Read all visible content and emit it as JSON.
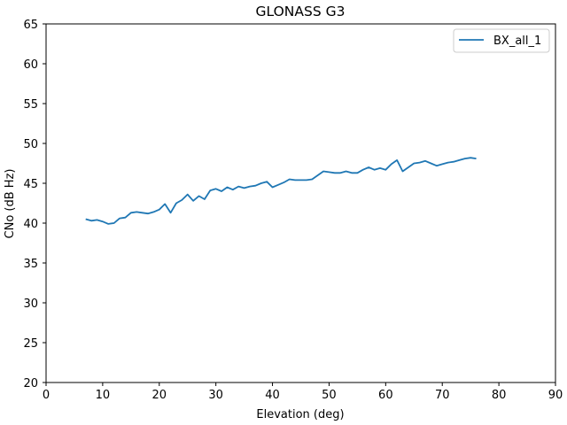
{
  "chart_data": {
    "type": "line",
    "title": "GLONASS G3",
    "xlabel": "Elevation (deg)",
    "ylabel": "CNo (dB Hz)",
    "xlim": [
      0,
      90
    ],
    "ylim": [
      20,
      65
    ],
    "xticks": [
      0,
      10,
      20,
      30,
      40,
      50,
      60,
      70,
      80,
      90
    ],
    "yticks": [
      20,
      25,
      30,
      35,
      40,
      45,
      50,
      55,
      60,
      65
    ],
    "grid": false,
    "legend_position": "top-right",
    "series": [
      {
        "name": "BX_all_1",
        "color": "#1f77b4",
        "x": [
          7,
          8,
          9,
          10,
          11,
          12,
          13,
          14,
          15,
          16,
          17,
          18,
          19,
          20,
          21,
          22,
          23,
          24,
          25,
          26,
          27,
          28,
          29,
          30,
          31,
          32,
          33,
          34,
          35,
          36,
          37,
          38,
          39,
          40,
          41,
          42,
          43,
          44,
          45,
          46,
          47,
          48,
          49,
          50,
          51,
          52,
          53,
          54,
          55,
          56,
          57,
          58,
          59,
          60,
          61,
          62,
          63,
          64,
          65,
          66,
          67,
          68,
          69,
          70,
          71,
          72,
          73,
          74,
          75,
          76
        ],
        "y": [
          40.5,
          40.3,
          40.4,
          40.2,
          39.9,
          40.0,
          40.6,
          40.7,
          41.3,
          41.4,
          41.3,
          41.2,
          41.4,
          41.7,
          42.4,
          41.3,
          42.5,
          42.9,
          43.6,
          42.8,
          43.4,
          43.0,
          44.1,
          44.3,
          44.0,
          44.5,
          44.2,
          44.6,
          44.4,
          44.6,
          44.7,
          45.0,
          45.2,
          44.5,
          44.8,
          45.1,
          45.5,
          45.4,
          45.4,
          45.4,
          45.5,
          46.0,
          46.5,
          46.4,
          46.3,
          46.3,
          46.5,
          46.3,
          46.3,
          46.7,
          47.0,
          46.7,
          46.9,
          46.7,
          47.4,
          47.9,
          46.5,
          47.0,
          47.5,
          47.6,
          47.8,
          47.5,
          47.2,
          47.4,
          47.6,
          47.7,
          47.9,
          48.1,
          48.2,
          48.1
        ]
      }
    ]
  }
}
